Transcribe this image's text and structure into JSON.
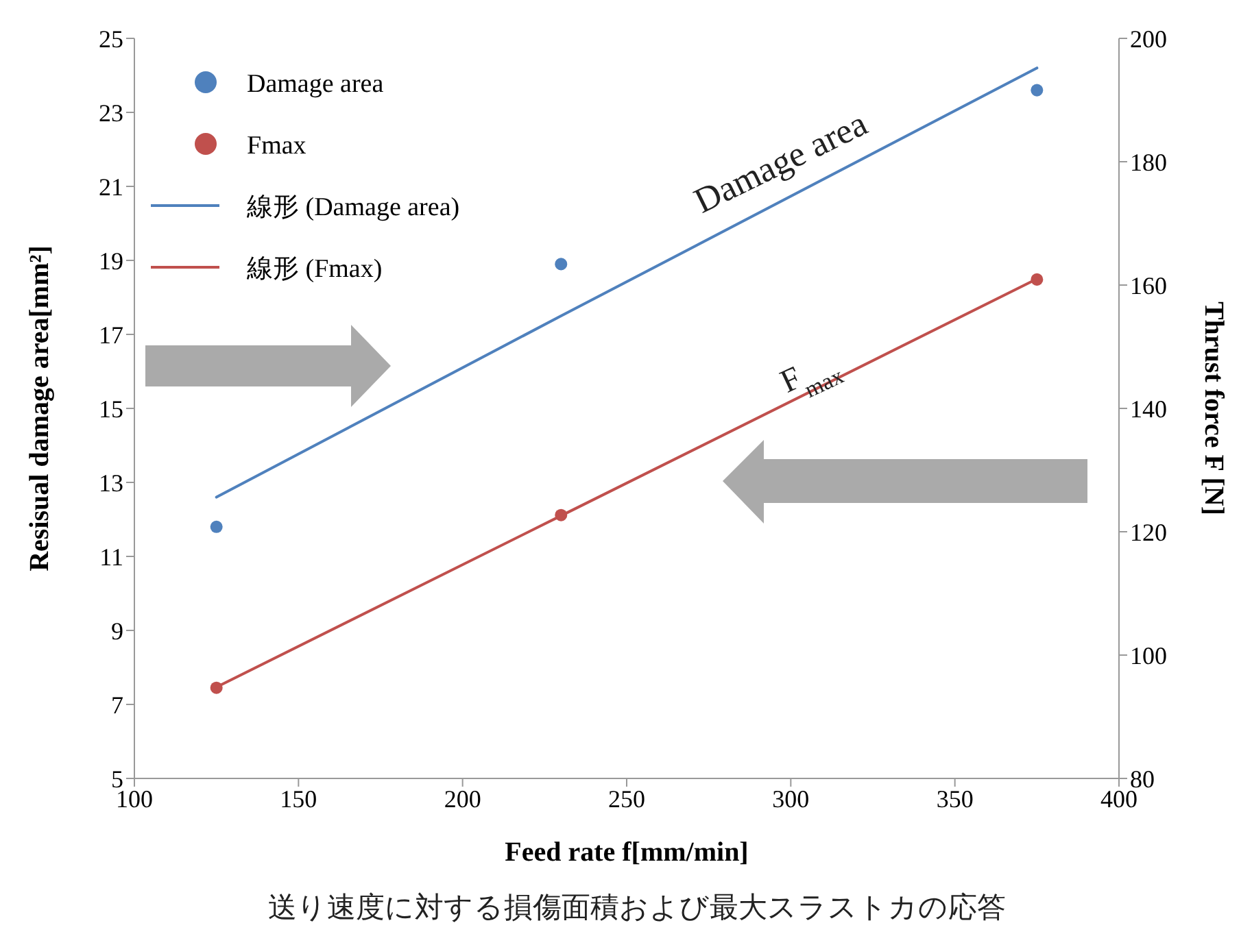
{
  "chart_data": {
    "type": "scatter",
    "xlabel": "Feed rate f[mm/min]",
    "ylabel": "Resisual damage area[mm²]",
    "y2label": "Thrust force F [N]",
    "xlim": [
      100,
      400
    ],
    "xticks": [
      100,
      150,
      200,
      250,
      300,
      350,
      400
    ],
    "ylim": [
      5,
      25
    ],
    "yticks": [
      5,
      7,
      9,
      11,
      13,
      15,
      17,
      19,
      21,
      23,
      25
    ],
    "y2lim": [
      80,
      200
    ],
    "y2ticks": [
      80,
      100,
      120,
      140,
      160,
      180,
      200
    ],
    "x": [
      125,
      230,
      375
    ],
    "series": [
      {
        "name": "Damage area",
        "type": "scatter",
        "color": "#4f81bd",
        "values": [
          11.8,
          18.9,
          23.6
        ],
        "marker": "circle"
      },
      {
        "name": "Fmax",
        "type": "scatter",
        "color": "#c0504d",
        "values": [
          94.7,
          122.7,
          160.9
        ],
        "axis": "y2",
        "marker": "circle"
      },
      {
        "name": "線形 (Damage area)",
        "type": "line",
        "color": "#4f81bd",
        "values": [
          12.6,
          17.5,
          24.2
        ],
        "marker": "none"
      },
      {
        "name": "線形 (Fmax)",
        "type": "line",
        "color": "#c0504d",
        "values": [
          94.8,
          122.6,
          161.0
        ],
        "axis": "y2",
        "marker": "none"
      }
    ],
    "legend": "top left",
    "grid": false,
    "annotations": [
      "Damage area",
      "F$_{max}$",
      "送り速度に対する損傷面積および最大スラストカの応答"
    ]
  }
}
